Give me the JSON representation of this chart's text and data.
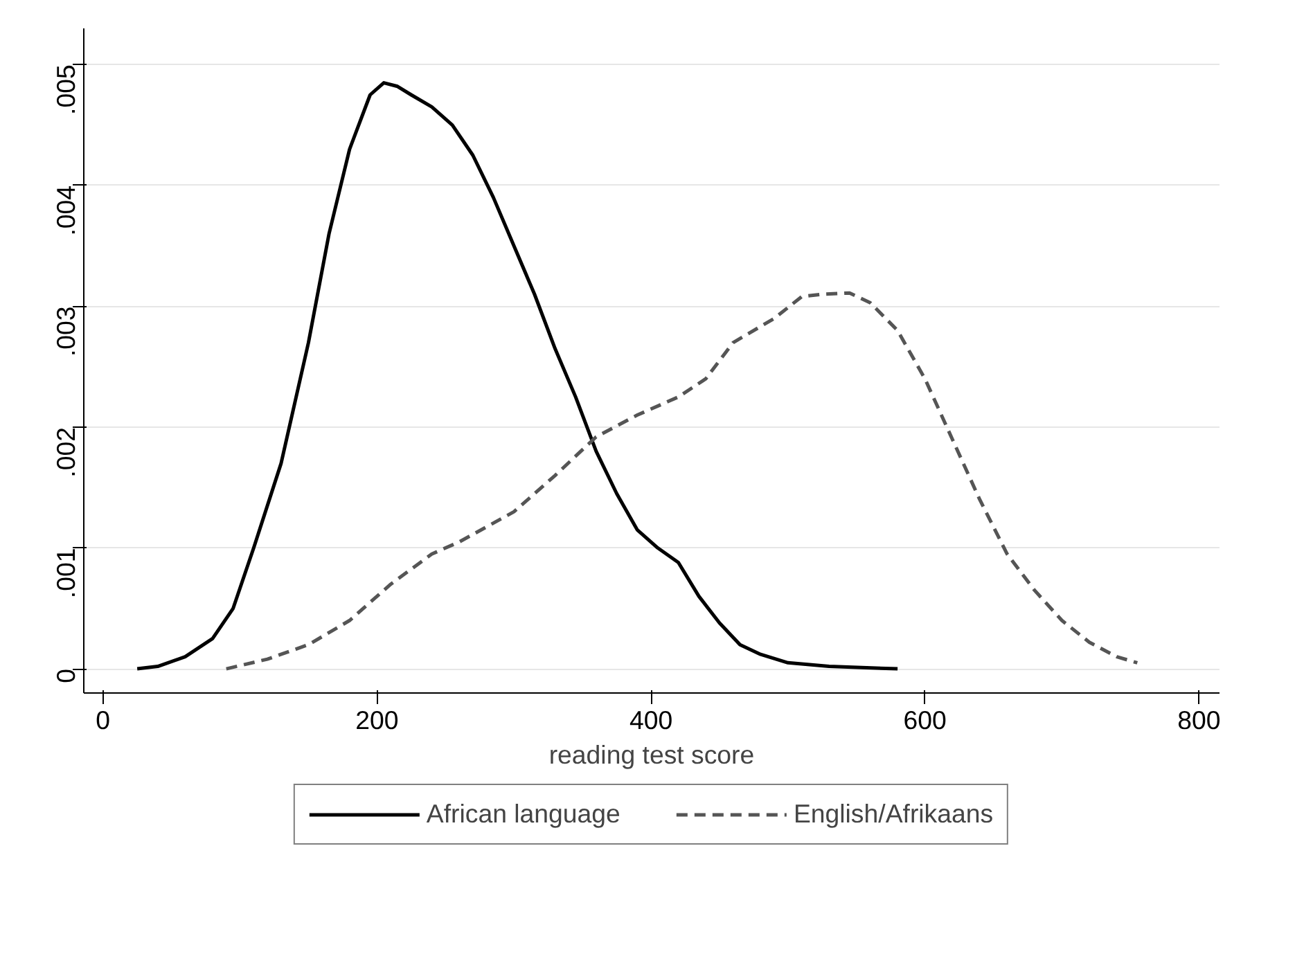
{
  "chart_data": {
    "type": "line",
    "xlabel": "reading test score",
    "xlim": [
      -14,
      815
    ],
    "ylim": [
      -0.0002,
      0.0053
    ],
    "xticks": [
      0,
      200,
      400,
      600,
      800
    ],
    "yticks": [
      {
        "value": 0,
        "label": "0"
      },
      {
        "value": 0.001,
        "label": ".001"
      },
      {
        "value": 0.002,
        "label": ".002"
      },
      {
        "value": 0.003,
        "label": ".003"
      },
      {
        "value": 0.004,
        "label": ".004"
      },
      {
        "value": 0.005,
        "label": ".005"
      }
    ],
    "grid": "y",
    "legend": "bottom",
    "marker": "none",
    "series": [
      {
        "name": "African language",
        "color": "#000000",
        "line_style": "solid",
        "x": [
          25,
          40,
          60,
          80,
          95,
          110,
          130,
          150,
          165,
          180,
          195,
          205,
          215,
          225,
          240,
          255,
          270,
          285,
          300,
          315,
          330,
          345,
          360,
          375,
          390,
          405,
          420,
          435,
          450,
          465,
          480,
          500,
          530,
          580
        ],
        "values": [
          0,
          2e-05,
          0.0001,
          0.00025,
          0.0005,
          0.001,
          0.0017,
          0.0027,
          0.0036,
          0.0043,
          0.00475,
          0.00485,
          0.00482,
          0.00475,
          0.00465,
          0.0045,
          0.00425,
          0.0039,
          0.0035,
          0.0031,
          0.00265,
          0.00225,
          0.0018,
          0.00145,
          0.00115,
          0.001,
          0.00088,
          0.0006,
          0.00038,
          0.0002,
          0.00012,
          5e-05,
          2e-05,
          0
        ]
      },
      {
        "name": "English/Afrikaans",
        "color": "#555555",
        "line_style": "dashed",
        "x": [
          90,
          120,
          150,
          180,
          210,
          240,
          260,
          300,
          330,
          360,
          390,
          420,
          440,
          460,
          490,
          510,
          525,
          545,
          560,
          580,
          600,
          620,
          640,
          660,
          680,
          700,
          720,
          740,
          755
        ],
        "values": [
          0,
          8e-05,
          0.0002,
          0.0004,
          0.0007,
          0.00095,
          0.00105,
          0.0013,
          0.0016,
          0.00192,
          0.0021,
          0.00225,
          0.0024,
          0.0027,
          0.0029,
          0.00308,
          0.0031,
          0.00311,
          0.00303,
          0.0028,
          0.0024,
          0.0019,
          0.0014,
          0.00095,
          0.00065,
          0.0004,
          0.00022,
          0.0001,
          5e-05
        ]
      }
    ]
  }
}
